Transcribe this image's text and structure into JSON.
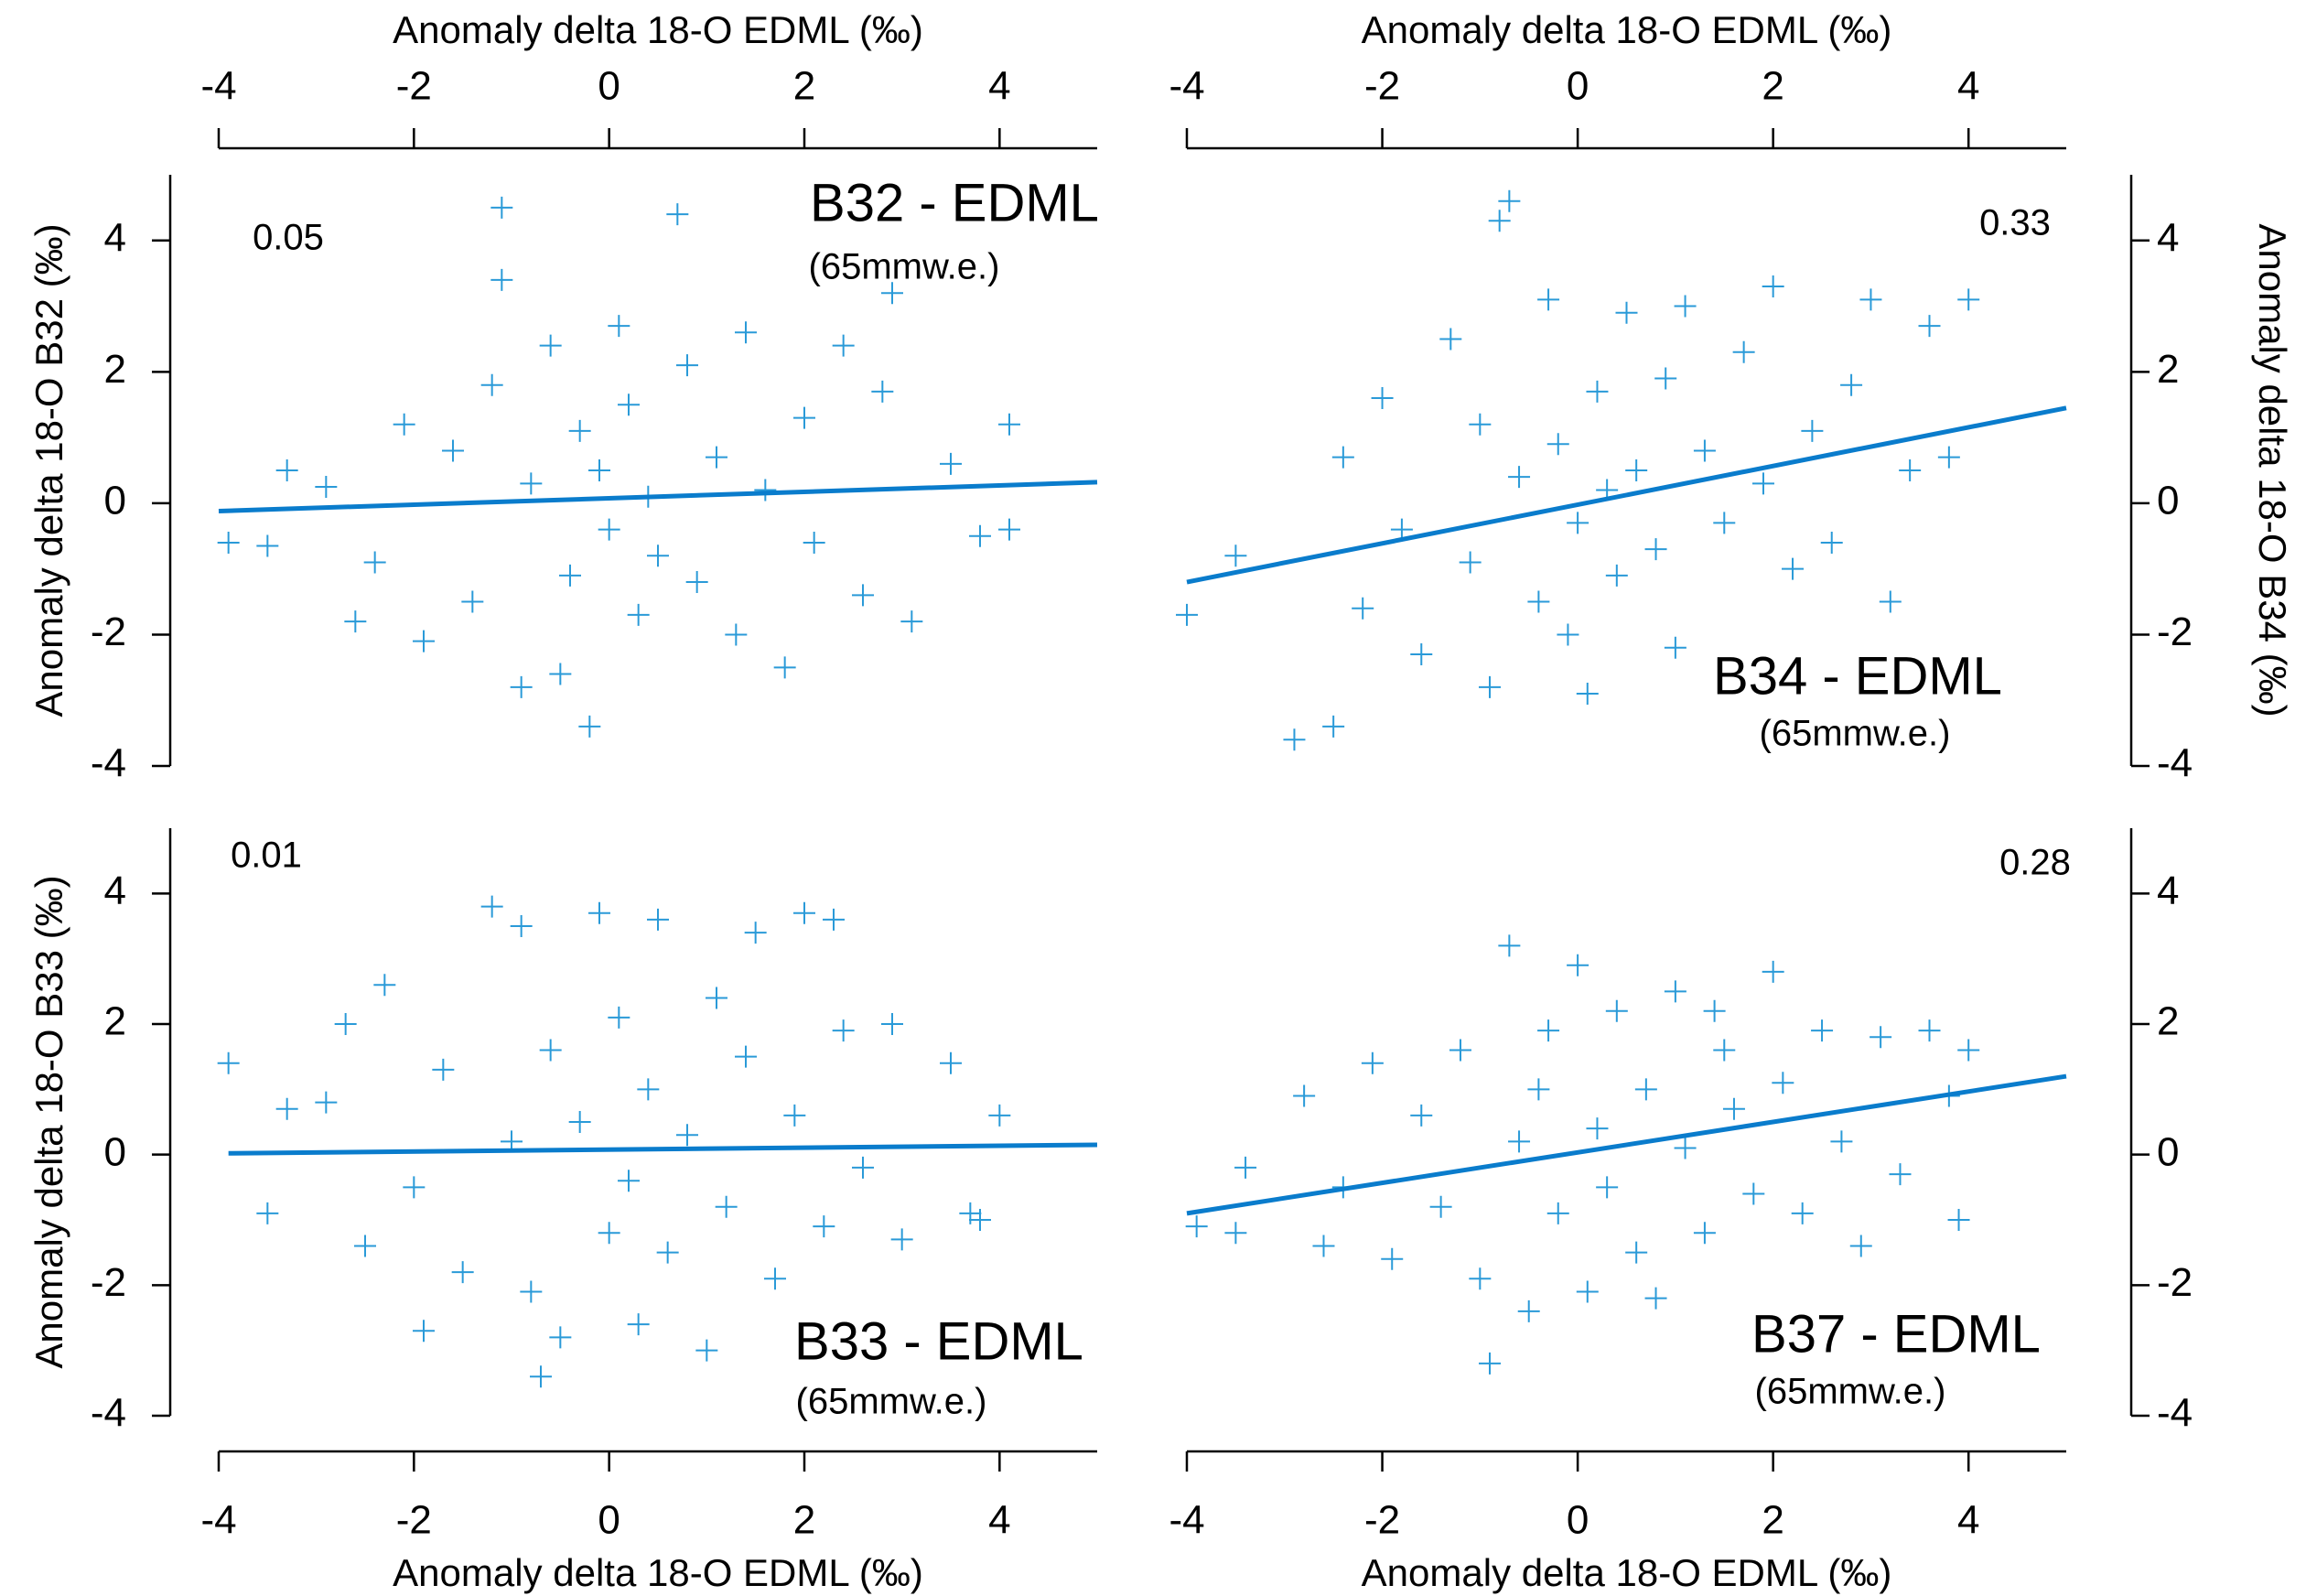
{
  "chart_data": [
    {
      "type": "scatter",
      "title": "B32 - EDML",
      "subtitle": "(65mmw.e.)",
      "annotation": "0.05",
      "x_label": "Anomaly delta 18-O EDML (‰)",
      "y_label": "Anomaly delta 18-O B32 (‰)",
      "x_axis": "top",
      "y_axis": "left",
      "xlim": [
        -4,
        5
      ],
      "xticks": [
        -4,
        -2,
        0,
        2,
        4
      ],
      "ylim": [
        -4,
        5
      ],
      "yticks": [
        -4,
        -2,
        0,
        2,
        4
      ],
      "series": [
        {
          "mode": "markers",
          "color": "#2a9ad8",
          "x": [
            -3.9,
            -3.5,
            -3.3,
            -2.9,
            -2.6,
            -2.4,
            -2.1,
            -1.9,
            -1.6,
            -1.4,
            -1.2,
            -1.1,
            -1.1,
            -0.9,
            -0.8,
            -0.6,
            -0.5,
            -0.4,
            -0.3,
            -0.2,
            -0.1,
            0,
            0.1,
            0.2,
            0.3,
            0.4,
            0.5,
            0.7,
            0.8,
            0.9,
            1.1,
            1.3,
            1.4,
            1.6,
            1.8,
            2.0,
            2.1,
            2.4,
            2.6,
            2.8,
            2.9,
            3.1,
            3.5,
            3.8,
            4.1,
            4.1
          ],
          "values": [
            -0.6,
            -0.65,
            0.5,
            0.25,
            -1.8,
            -0.9,
            1.2,
            -2.1,
            0.8,
            -1.5,
            1.8,
            4.5,
            3.4,
            -2.8,
            0.3,
            2.4,
            -2.6,
            -1.1,
            1.1,
            -3.4,
            0.5,
            -0.4,
            2.7,
            1.5,
            -1.7,
            0.1,
            -0.8,
            4.4,
            2.1,
            -1.2,
            0.7,
            -2.0,
            2.6,
            0.2,
            -2.5,
            1.3,
            -0.6,
            2.4,
            -1.4,
            1.7,
            3.2,
            -1.8,
            0.6,
            -0.5,
            1.2,
            -0.4
          ]
        },
        {
          "mode": "lines",
          "color": "#0a7ccc",
          "x": [
            -4,
            5
          ],
          "values": [
            -0.12,
            0.32
          ]
        }
      ]
    },
    {
      "type": "scatter",
      "title": "B34 - EDML",
      "subtitle": "(65mmw.e.)",
      "annotation": "0.33",
      "x_label": "Anomaly delta 18-O EDML (‰)",
      "y_label": "Anomaly delta 18-O B34 (‰)",
      "x_axis": "top",
      "y_axis": "right",
      "xlim": [
        -4,
        5
      ],
      "xticks": [
        -4,
        -2,
        0,
        2,
        4
      ],
      "ylim": [
        -4,
        5
      ],
      "yticks": [
        -4,
        -2,
        0,
        2,
        4
      ],
      "series": [
        {
          "mode": "markers",
          "color": "#2a9ad8",
          "x": [
            -4.0,
            -3.5,
            -2.9,
            -2.5,
            -2.4,
            -2.2,
            -2.0,
            -1.8,
            -1.6,
            -1.3,
            -1.1,
            -1.0,
            -0.9,
            -0.7,
            -0.8,
            -0.6,
            -0.4,
            -0.3,
            -0.2,
            -0.1,
            0,
            0.1,
            0.2,
            0.3,
            0.4,
            0.5,
            0.6,
            0.8,
            0.9,
            1.0,
            1.1,
            1.3,
            1.5,
            1.7,
            1.9,
            2.0,
            2.2,
            2.4,
            2.6,
            2.8,
            3.0,
            3.2,
            3.4,
            3.6,
            3.8,
            4.0
          ],
          "values": [
            -1.7,
            -0.8,
            -3.6,
            -3.4,
            0.7,
            -1.6,
            1.6,
            -0.4,
            -2.3,
            2.5,
            -0.9,
            1.2,
            -2.8,
            4.6,
            4.3,
            0.4,
            -1.5,
            3.1,
            0.9,
            -2.0,
            -0.3,
            -2.9,
            1.7,
            0.2,
            -1.1,
            2.9,
            0.5,
            -0.7,
            1.9,
            -2.2,
            3.0,
            0.8,
            -0.3,
            2.3,
            0.3,
            3.3,
            -1.0,
            1.1,
            -0.6,
            1.8,
            3.1,
            -1.5,
            0.5,
            2.7,
            0.7,
            3.1
          ]
        },
        {
          "mode": "lines",
          "color": "#0a7ccc",
          "x": [
            -4,
            5
          ],
          "values": [
            -1.2,
            1.45
          ]
        }
      ]
    },
    {
      "type": "scatter",
      "title": "B33 - EDML",
      "subtitle": "(65mmw.e.)",
      "annotation": "0.01",
      "x_label": "Anomaly delta 18-O EDML (‰)",
      "y_label": "Anomaly delta 18-O B33 (‰)",
      "x_axis": "bottom",
      "y_axis": "left",
      "xlim": [
        -4,
        5
      ],
      "xticks": [
        -4,
        -2,
        0,
        2,
        4
      ],
      "ylim": [
        -4,
        5
      ],
      "yticks": [
        -4,
        -2,
        0,
        2,
        4
      ],
      "series": [
        {
          "mode": "markers",
          "color": "#2a9ad8",
          "x": [
            -3.9,
            -3.5,
            -3.3,
            -2.9,
            -2.7,
            -2.5,
            -2.3,
            -2.0,
            -1.9,
            -1.7,
            -1.5,
            -1.2,
            -1.0,
            -0.9,
            -0.8,
            -0.7,
            -0.6,
            -0.5,
            -0.3,
            -0.1,
            0,
            0.1,
            0.2,
            0.3,
            0.4,
            0.5,
            0.6,
            0.8,
            1.0,
            1.1,
            1.2,
            1.4,
            1.5,
            1.7,
            1.9,
            2.0,
            2.2,
            2.4,
            2.6,
            2.9,
            3.0,
            3.5,
            3.7,
            4.0,
            3.8,
            2.3
          ],
          "values": [
            1.4,
            -0.9,
            0.7,
            0.8,
            2.0,
            -1.4,
            2.6,
            -0.5,
            -2.7,
            1.3,
            -1.8,
            3.8,
            0.2,
            3.5,
            -2.1,
            -3.4,
            1.6,
            -2.8,
            0.5,
            3.7,
            -1.2,
            2.1,
            -0.4,
            -2.6,
            1.0,
            3.6,
            -1.5,
            0.3,
            -3.0,
            2.4,
            -0.8,
            1.5,
            3.4,
            -1.9,
            0.6,
            3.7,
            -1.1,
            1.9,
            -0.2,
            2.0,
            -1.3,
            1.4,
            -0.9,
            0.6,
            -1.0,
            3.6
          ]
        },
        {
          "mode": "lines",
          "color": "#0a7ccc",
          "x": [
            -3.9,
            5
          ],
          "values": [
            0.02,
            0.15
          ]
        }
      ]
    },
    {
      "type": "scatter",
      "title": "B37 - EDML",
      "subtitle": "(65mmw.e.)",
      "annotation": "0.28",
      "x_label": "Anomaly delta 18-O EDML (‰)",
      "x_axis": "bottom",
      "y_axis": "right",
      "xlim": [
        -4,
        5
      ],
      "xticks": [
        -4,
        -2,
        0,
        2,
        4
      ],
      "ylim": [
        -4,
        5
      ],
      "yticks": [
        -4,
        -2,
        0,
        2,
        4
      ],
      "series": [
        {
          "mode": "markers",
          "color": "#2a9ad8",
          "x": [
            -3.9,
            -3.5,
            -3.4,
            -2.8,
            -2.6,
            -2.4,
            -2.1,
            -1.9,
            -1.6,
            -1.4,
            -1.2,
            -1.0,
            -0.9,
            -0.7,
            -0.6,
            -0.5,
            -0.3,
            -0.2,
            0,
            0.1,
            0.2,
            0.3,
            0.4,
            0.6,
            0.7,
            0.8,
            1.0,
            1.1,
            1.3,
            1.5,
            1.6,
            1.8,
            2.0,
            2.1,
            2.3,
            2.5,
            2.7,
            2.9,
            3.1,
            3.3,
            3.6,
            3.8,
            3.9,
            4.0,
            1.4,
            -0.4
          ],
          "values": [
            -1.1,
            -1.2,
            -0.2,
            0.9,
            -1.4,
            -0.5,
            1.4,
            -1.6,
            0.6,
            -0.8,
            1.6,
            -1.9,
            -3.2,
            3.2,
            0.2,
            -2.4,
            1.9,
            -0.9,
            2.9,
            -2.1,
            0.4,
            -0.5,
            2.2,
            -1.5,
            1.0,
            -2.2,
            2.5,
            0.1,
            -1.2,
            1.6,
            0.7,
            -0.6,
            2.8,
            1.1,
            -0.9,
            1.9,
            0.2,
            -1.4,
            1.8,
            -0.3,
            1.9,
            0.9,
            -1.0,
            1.6,
            2.2,
            1.0
          ]
        },
        {
          "mode": "lines",
          "color": "#0a7ccc",
          "x": [
            -4,
            5
          ],
          "values": [
            -0.9,
            1.2
          ]
        }
      ]
    }
  ]
}
